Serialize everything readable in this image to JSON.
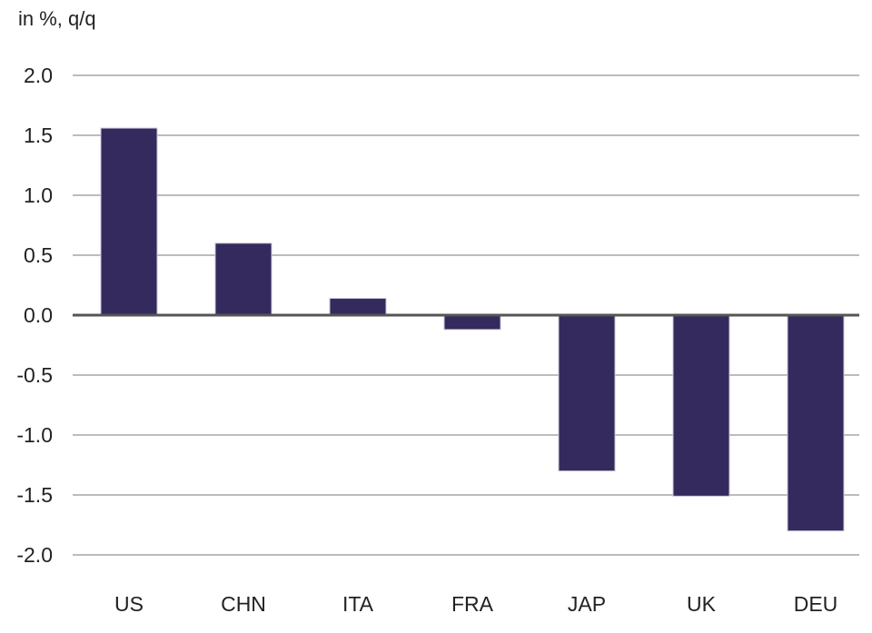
{
  "chart_data": {
    "type": "bar",
    "ylabel": "in %, q/q",
    "categories": [
      "US",
      "CHN",
      "ITA",
      "FRA",
      "JAP",
      "UK",
      "DEU"
    ],
    "values": [
      1.56,
      0.6,
      0.14,
      -0.12,
      -1.3,
      -1.51,
      -1.8
    ],
    "ylim": [
      -2.0,
      2.0
    ],
    "yticks": [
      2.0,
      1.5,
      1.0,
      0.5,
      0.0,
      -0.5,
      -1.0,
      -1.5,
      -2.0
    ],
    "ytick_labels": [
      "2.0",
      "1.5",
      "1.0",
      "0.5",
      "0.0",
      "-0.5",
      "-1.0",
      "-1.5",
      "-2.0"
    ],
    "grid": true,
    "legend": "none",
    "colors": {
      "bar": "#342a5e",
      "grid": "#a6a6a6",
      "zero_line": "#555555",
      "text": "#222222"
    }
  }
}
